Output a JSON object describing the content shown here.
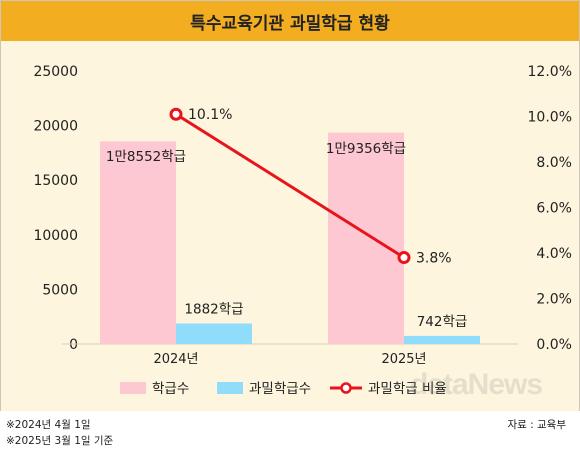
{
  "title": "특수교육기관 과밀학급 현황",
  "notes": [
    "※2024년 4월 1일",
    "※2025년 3월 1일 기준"
  ],
  "source": "자료 : 교육부",
  "watermark": "dataNews",
  "colors": {
    "title_bg": "#f2ae20",
    "plot_bg": "#fdf5dd",
    "bar_classes": "#fdc8d2",
    "bar_overcrowded": "#8fdcfb",
    "line_ratio": "#e8141b"
  },
  "chart_data": {
    "type": "bar",
    "categories": [
      "2024년",
      "2025년"
    ],
    "series": [
      {
        "name": "학급수",
        "axis": "left",
        "values": [
          18552,
          19356
        ],
        "labels": [
          "1만8552학급",
          "1만9356학급"
        ]
      },
      {
        "name": "과밀학급수",
        "axis": "left",
        "values": [
          1882,
          742
        ],
        "labels": [
          "1882학급",
          "742학급"
        ]
      },
      {
        "name": "과밀학급 비율",
        "type": "line",
        "axis": "right",
        "values": [
          10.1,
          3.8
        ],
        "labels": [
          "10.1%",
          "3.8%"
        ]
      }
    ],
    "left_axis": {
      "ticks": [
        "0",
        "5000",
        "10000",
        "15000",
        "20000",
        "25000"
      ],
      "ylim": [
        0,
        25000
      ]
    },
    "right_axis": {
      "ticks": [
        "0.0%",
        "2.0%",
        "4.0%",
        "6.0%",
        "8.0%",
        "10.0%",
        "12.0%"
      ],
      "ylim": [
        0,
        12
      ]
    },
    "legend": [
      "학급수",
      "과밀학급수",
      "과밀학급 비율"
    ],
    "legend_position": "bottom"
  }
}
